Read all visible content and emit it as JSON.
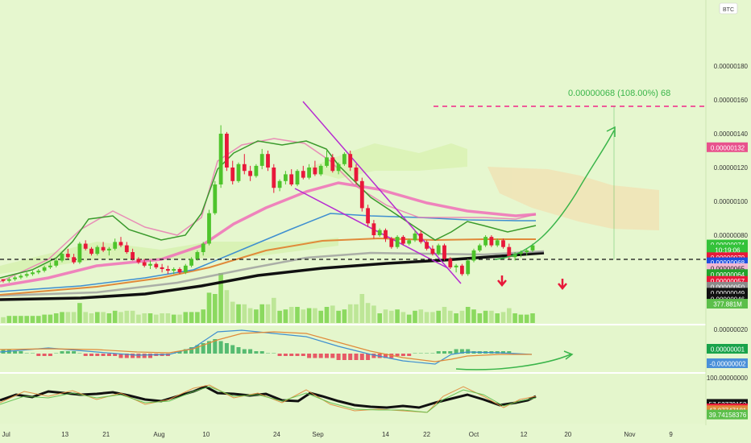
{
  "symbol_badge": "BTC",
  "colors": {
    "background": "#e6f7cf",
    "up": "#4ec42b",
    "down": "#e8183a",
    "ema_short": "#3a9a2c",
    "ema_pink": "#f06fb8",
    "ma_blue": "#3f8fd0",
    "ma_orange": "#e08a3a",
    "ma_gray": "#9c9c9c",
    "ma_black": "#111111",
    "target_line": "#ef5a9a",
    "projection": "#3ab54a",
    "cloud": "#f5d9a8"
  },
  "price_axis": {
    "ticks": [
      "0.00000180",
      "0.00000160",
      "0.00000140",
      "0.00000120",
      "0.00000100",
      "0.00000080"
    ],
    "labels": [
      {
        "text": "0.00000132",
        "bg": "#e8528d",
        "fg": "#ffffff",
        "y_value": 132
      },
      {
        "text": "0.00000074",
        "bg": "#34c23a",
        "fg": "#ffffff",
        "y_value": 74.5
      },
      {
        "text": "10:19:06",
        "bg": "#34c23a",
        "fg": "#ffffff",
        "y_value": 71.5
      },
      {
        "text": "0.00000070",
        "bg": "#e8183a",
        "fg": "#ffffff",
        "y_value": 67
      },
      {
        "text": "0.00000068",
        "bg": "#1d4fe0",
        "fg": "#ffffff",
        "y_value": 64
      },
      {
        "text": "0.00000065",
        "bg": "#f1b7d4",
        "fg": "#222222",
        "y_value": 60.5
      },
      {
        "text": "0.00000064",
        "bg": "#22a32b",
        "fg": "#ffffff",
        "y_value": 57
      },
      {
        "text": "0.00000057",
        "bg": "#e8183a",
        "fg": "#ffffff",
        "y_value": 53
      },
      {
        "text": "0.00000050",
        "bg": "#8a8a8a",
        "fg": "#ffffff",
        "y_value": 49.5
      },
      {
        "text": "0.00000049",
        "bg": "#111111",
        "fg": "#ffffff",
        "y_value": 46
      },
      {
        "text": "0.00000046",
        "bg": "#111111",
        "fg": "#ffffff",
        "y_value": 42.5
      },
      {
        "text": "377.881M",
        "bg": "#5cbf4a",
        "fg": "#ffffff",
        "y_value": 39.5
      }
    ]
  },
  "target_annotation": "0.00000068 (108.00%) 68",
  "macd_axis": {
    "ticks": [
      "0.00000020"
    ],
    "labels": [
      {
        "text": "0.00000001",
        "bg": "#19a34a",
        "fg": "#ffffff",
        "y_value": 1
      },
      {
        "text": "-0.00000002",
        "bg": "#4a90d9",
        "fg": "#ffffff",
        "y_value": -2
      }
    ]
  },
  "rsi_axis": {
    "ticks": [
      "100.00000000"
    ],
    "labels": [
      {
        "text": "57.53779152",
        "bg": "#111111",
        "fg": "#ffffff",
        "y_value": 57.5
      },
      {
        "text": "50.00000000",
        "bg": "#e8183a",
        "fg": "#ffffff",
        "y_value": 50
      },
      {
        "text": "47.07747181",
        "bg": "#e08a3a",
        "fg": "#ffffff",
        "y_value": 47
      },
      {
        "text": "39.74158376",
        "bg": "#5cbf4a",
        "fg": "#ffffff",
        "y_value": 39.7
      }
    ]
  },
  "time_axis": [
    "Jul",
    "13",
    "21",
    "Aug",
    "10",
    "24",
    "Sep",
    "14",
    "22",
    "Oct",
    "12",
    "20",
    "Nov",
    "9"
  ],
  "chart_data": {
    "type": "candlestick",
    "price_scale": "1e-8 BTC",
    "ylim": [
      18,
      192
    ],
    "candles": [
      [
        54,
        54,
        52,
        53
      ],
      [
        53,
        55,
        52,
        54
      ],
      [
        54,
        56,
        53,
        55
      ],
      [
        55,
        57,
        54,
        56
      ],
      [
        56,
        58,
        55,
        57
      ],
      [
        57,
        59,
        56,
        58
      ],
      [
        58,
        60,
        57,
        59
      ],
      [
        59,
        62,
        58,
        61
      ],
      [
        61,
        64,
        60,
        62
      ],
      [
        62,
        66,
        61,
        65
      ],
      [
        65,
        70,
        64,
        69
      ],
      [
        69,
        72,
        66,
        67
      ],
      [
        67,
        69,
        63,
        64
      ],
      [
        64,
        76,
        63,
        75
      ],
      [
        75,
        77,
        71,
        72
      ],
      [
        72,
        73,
        68,
        69
      ],
      [
        69,
        74,
        68,
        73
      ],
      [
        73,
        76,
        70,
        71
      ],
      [
        71,
        73,
        68,
        72
      ],
      [
        72,
        78,
        71,
        76
      ],
      [
        76,
        79,
        73,
        74
      ],
      [
        74,
        76,
        69,
        70
      ],
      [
        70,
        72,
        65,
        66
      ],
      [
        66,
        67,
        63,
        64
      ],
      [
        64,
        66,
        61,
        62
      ],
      [
        62,
        65,
        60,
        63
      ],
      [
        63,
        64,
        60,
        61
      ],
      [
        61,
        63,
        58,
        60
      ],
      [
        60,
        62,
        57,
        59
      ],
      [
        59,
        61,
        57,
        60
      ],
      [
        60,
        61,
        57,
        58
      ],
      [
        58,
        63,
        57,
        62
      ],
      [
        62,
        67,
        61,
        66
      ],
      [
        66,
        71,
        65,
        70
      ],
      [
        70,
        76,
        68,
        75
      ],
      [
        75,
        95,
        74,
        93
      ],
      [
        93,
        112,
        92,
        110
      ],
      [
        110,
        145,
        108,
        140
      ],
      [
        140,
        141,
        118,
        120
      ],
      [
        120,
        124,
        110,
        112
      ],
      [
        112,
        123,
        111,
        122
      ],
      [
        122,
        128,
        116,
        118
      ],
      [
        118,
        121,
        112,
        115
      ],
      [
        115,
        122,
        114,
        121
      ],
      [
        121,
        131,
        119,
        128
      ],
      [
        128,
        130,
        118,
        120
      ],
      [
        120,
        122,
        105,
        108
      ],
      [
        108,
        113,
        106,
        112
      ],
      [
        112,
        118,
        110,
        116
      ],
      [
        116,
        119,
        109,
        110
      ],
      [
        110,
        119,
        109,
        118
      ],
      [
        118,
        121,
        113,
        114
      ],
      [
        114,
        122,
        113,
        120
      ],
      [
        120,
        124,
        115,
        116
      ],
      [
        116,
        122,
        115,
        121
      ],
      [
        121,
        130,
        120,
        126
      ],
      [
        126,
        128,
        117,
        118
      ],
      [
        118,
        123,
        116,
        122
      ],
      [
        122,
        129,
        121,
        128
      ],
      [
        128,
        130,
        118,
        120
      ],
      [
        120,
        122,
        110,
        112
      ],
      [
        112,
        114,
        94,
        96
      ],
      [
        96,
        98,
        85,
        87
      ],
      [
        87,
        89,
        78,
        80
      ],
      [
        80,
        84,
        79,
        83
      ],
      [
        83,
        84,
        76,
        78
      ],
      [
        78,
        79,
        72,
        73
      ],
      [
        73,
        80,
        72,
        79
      ],
      [
        79,
        80,
        74,
        75
      ],
      [
        75,
        78,
        74,
        77
      ],
      [
        77,
        83,
        76,
        81
      ],
      [
        81,
        83,
        75,
        76
      ],
      [
        76,
        77,
        71,
        72
      ],
      [
        72,
        74,
        68,
        69
      ],
      [
        69,
        75,
        68,
        74
      ],
      [
        74,
        75,
        65,
        66
      ],
      [
        66,
        67,
        60,
        61
      ],
      [
        61,
        63,
        58,
        62
      ],
      [
        62,
        63,
        56,
        57
      ],
      [
        57,
        66,
        56,
        65
      ],
      [
        65,
        72,
        64,
        71
      ],
      [
        71,
        75,
        70,
        74
      ],
      [
        74,
        80,
        73,
        79
      ],
      [
        79,
        80,
        73,
        74
      ],
      [
        74,
        78,
        73,
        77
      ],
      [
        77,
        78,
        72,
        73
      ],
      [
        73,
        75,
        66,
        67
      ],
      [
        67,
        70,
        65,
        69
      ],
      [
        69,
        71,
        67,
        70
      ],
      [
        70,
        72,
        68,
        71
      ],
      [
        71,
        75,
        70,
        74
      ]
    ],
    "annotations": [
      "0.00000068 (108.00%) 68"
    ]
  }
}
